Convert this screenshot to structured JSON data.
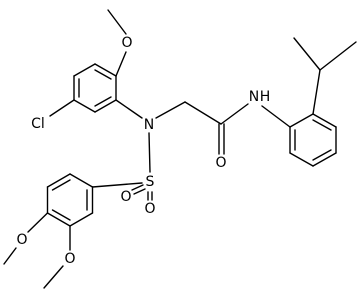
{
  "atoms": [
    {
      "label": "O"
    },
    {
      "label": "Cl"
    },
    {
      "label": "N"
    },
    {
      "label": "S"
    },
    {
      "label": "O"
    },
    {
      "label": "O"
    },
    {
      "label": "O"
    },
    {
      "label": "O"
    },
    {
      "label": "O"
    },
    {
      "label": "N"
    },
    {
      "label": "H"
    }
  ]
}
